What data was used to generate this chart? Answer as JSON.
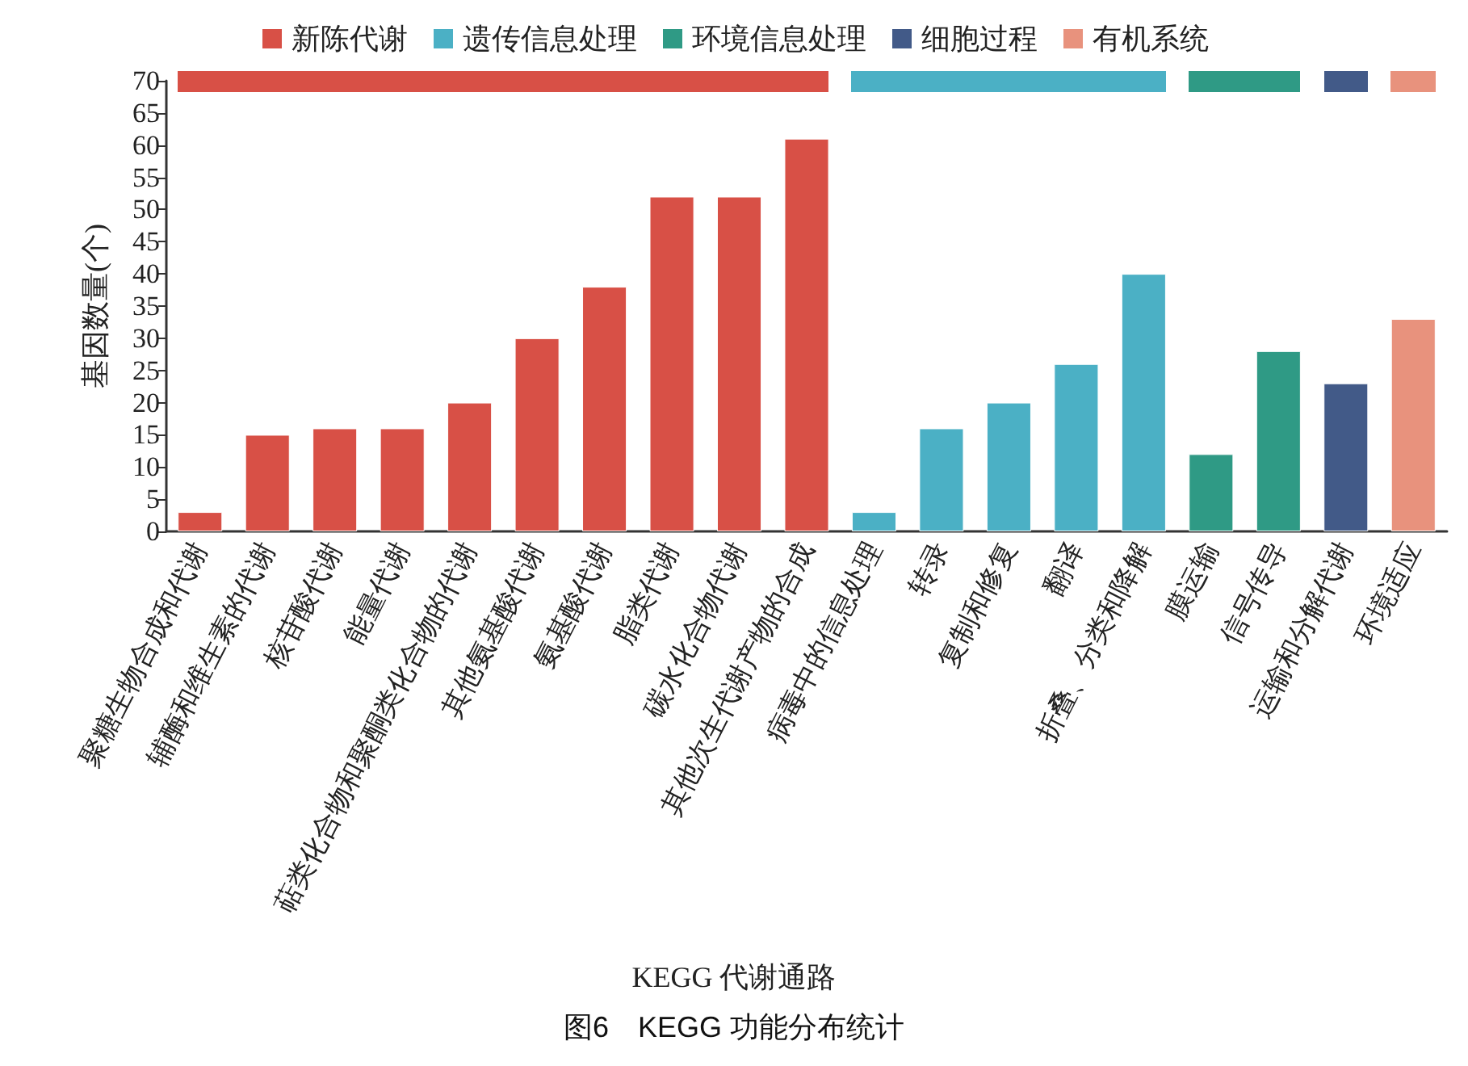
{
  "chart_data": {
    "type": "bar",
    "title": "图6　KEGG 功能分布统计",
    "xlabel": "KEGG 代谢通路",
    "ylabel": "基因数量(个)",
    "categories": [
      "聚糖生物合成和代谢",
      "辅酶和维生素的代谢",
      "核苷酸代谢",
      "能量代谢",
      "萜类化合物和聚酮类化合物的代谢",
      "其他氨基酸代谢",
      "氨基酸代谢",
      "脂类代谢",
      "碳水化合物代谢",
      "其他次生代谢产物的合成",
      "病毒中的信息处理",
      "转录",
      "复制和修复",
      "翻译",
      "折叠、分类和降解",
      "膜运输",
      "信号传导",
      "运输和分解代谢",
      "环境适应"
    ],
    "series": [
      {
        "name": "新陈代谢",
        "color": "#d85046",
        "values": [
          3,
          15,
          16,
          16,
          20,
          30,
          38,
          52,
          52,
          61,
          null,
          null,
          null,
          null,
          null,
          null,
          null,
          null,
          null
        ]
      },
      {
        "name": "遗传信息处理",
        "color": "#4bb0c5",
        "values": [
          null,
          null,
          null,
          null,
          null,
          null,
          null,
          null,
          null,
          null,
          3,
          16,
          20,
          26,
          40,
          null,
          null,
          null,
          null
        ]
      },
      {
        "name": "环境信息处理",
        "color": "#2f9a85",
        "values": [
          null,
          null,
          null,
          null,
          null,
          null,
          null,
          null,
          null,
          null,
          null,
          null,
          null,
          null,
          null,
          12,
          28,
          null,
          null
        ]
      },
      {
        "name": "细胞过程",
        "color": "#425a88",
        "values": [
          null,
          null,
          null,
          null,
          null,
          null,
          null,
          null,
          null,
          null,
          null,
          null,
          null,
          null,
          null,
          null,
          null,
          23,
          null
        ]
      },
      {
        "name": "有机系统",
        "color": "#e8927d",
        "values": [
          null,
          null,
          null,
          null,
          null,
          null,
          null,
          null,
          null,
          null,
          null,
          null,
          null,
          null,
          null,
          null,
          null,
          null,
          33
        ]
      }
    ],
    "ylim": [
      0,
      70
    ],
    "yticks": [
      0,
      5,
      10,
      15,
      20,
      25,
      30,
      35,
      40,
      45,
      50,
      55,
      60,
      65,
      70
    ],
    "grid": false,
    "legend": "top"
  }
}
